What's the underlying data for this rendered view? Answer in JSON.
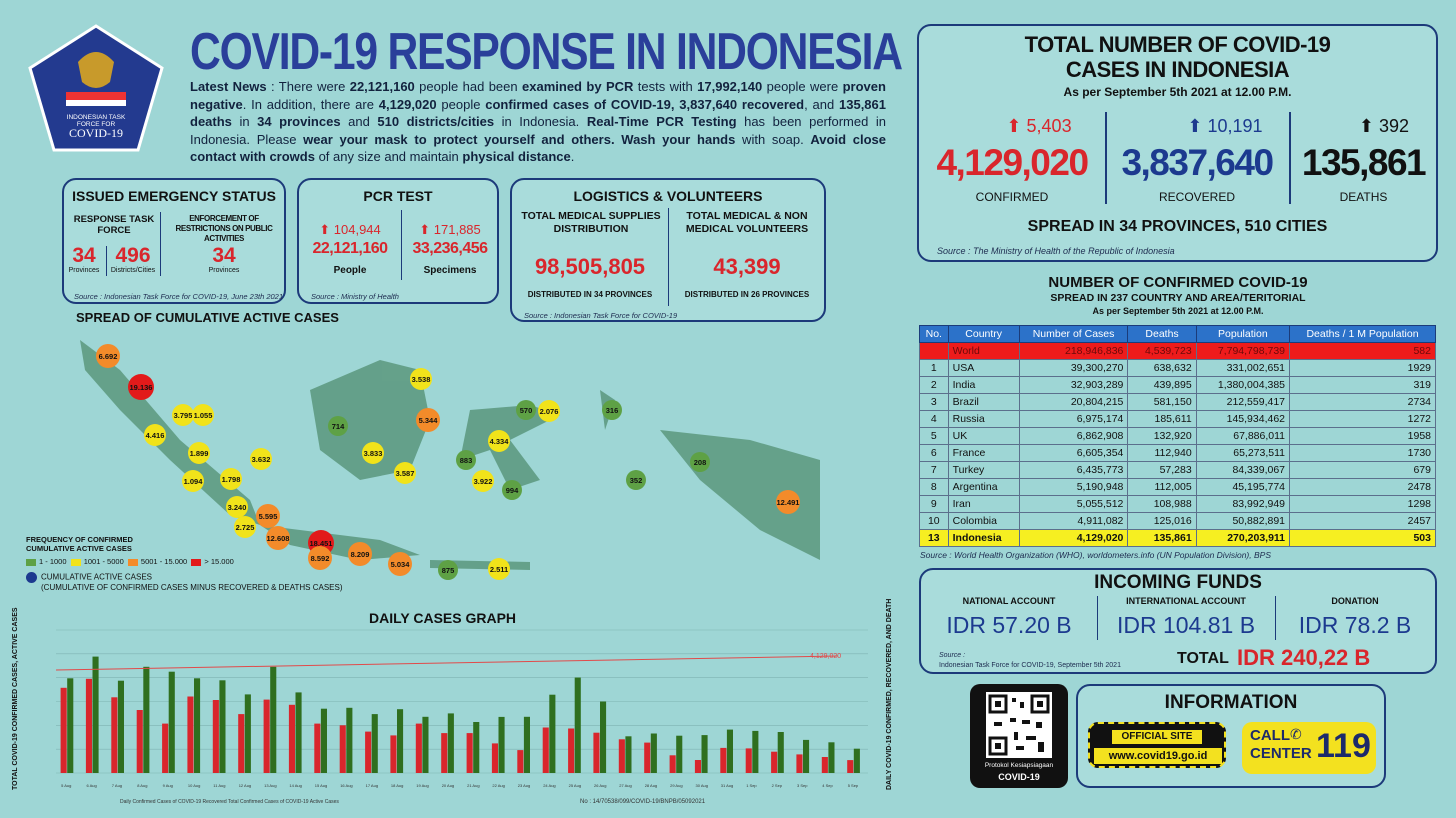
{
  "header": {
    "title": "COVID-19 RESPONSE IN INDONESIA",
    "logo_lines": [
      "INDONESIAN TASK",
      "FORCE FOR",
      "COVID-19"
    ],
    "news": {
      "t1": "Latest News",
      "t2": " : There were ",
      "t3": "22,121,160",
      "t4": " people had been ",
      "t5": "examined by PCR",
      "t6": " tests with ",
      "t7": "17,992,140",
      "t8": " people were ",
      "t9": "proven negative",
      "t10": ". In addition, there are ",
      "t11": "4,129,020",
      "t12": " people ",
      "t13": "confirmed cases of COVID-19, 3,837,640 recovered",
      "t14": ", and ",
      "t15": "135,861 deaths",
      "t16": " in ",
      "t17": "34 provinces",
      "t18": " and ",
      "t19": "510 districts/cities",
      "t20": " in Indonesia. ",
      "t21": "Real-Time PCR Testing",
      "t22": " has been performed in Indonesia. Please ",
      "t23": "wear your mask to protect yourself and others. Wash your hands",
      "t24": " with soap. ",
      "t25": "Avoid close contact with crowds",
      "t26": " of any size and maintain ",
      "t27": "physical distance",
      "t28": "."
    }
  },
  "emergency": {
    "title": "ISSUED EMERGENCY STATUS",
    "col1_title": "RESPONSE TASK FORCE",
    "col2_title": "ENFORCEMENT OF RESTRICTIONS ON PUBLIC ACTIVITIES",
    "n1": "34",
    "l1": "Provinces",
    "n2": "496",
    "l2": "Districts/Cities",
    "n3": "34",
    "l3": "Provinces",
    "source": "Source : Indonesian Task Force for COVID-19, June 23th 2021"
  },
  "pcr": {
    "title": "PCR TEST",
    "inc1": "104,944",
    "val1": "22,121,160",
    "lab1": "People",
    "inc2": "171,885",
    "val2": "33,236,456",
    "lab2": "Specimens",
    "source": "Source : Ministry of Health"
  },
  "logistics": {
    "title": "LOGISTICS & VOLUNTEERS",
    "c1_title": "TOTAL MEDICAL SUPPLIES DISTRIBUTION",
    "c1_val": "98,505,805",
    "c1_foot": "DISTRIBUTED IN 34 PROVINCES",
    "c2_title": "TOTAL MEDICAL & NON MEDICAL VOLUNTEERS",
    "c2_val": "43,399",
    "c2_foot": "DISTRIBUTED IN 26 PROVINCES",
    "source": "Source : Indonesian Task Force for COVID-19"
  },
  "totals": {
    "title1": "TOTAL NUMBER OF COVID-19",
    "title2": "CASES IN INDONESIA",
    "asof": "As per September 5th 2021 at 12.00 P.M.",
    "confirmed_inc": "5,403",
    "confirmed": "4,129,020",
    "confirmed_label": "CONFIRMED",
    "recovered_inc": "10,191",
    "recovered": "3,837,640",
    "recovered_label": "RECOVERED",
    "deaths_inc": "392",
    "deaths": "135,861",
    "deaths_label": "DEATHS",
    "spread": "SPREAD IN 34 PROVINCES, 510 CITIES",
    "source": "Source : The Ministry of Health of the Republic of Indonesia"
  },
  "world": {
    "title": "NUMBER OF CONFIRMED COVID-19",
    "subtitle": "SPREAD IN 237 COUNTRY AND AREA/TERITORIAL",
    "asof": "As per September 5th 2021 at 12.00 P.M.",
    "columns": [
      "No.",
      "Country",
      "Number of Cases",
      "Deaths",
      "Population",
      "Deaths / 1 M Population"
    ],
    "rows": [
      [
        "",
        "World",
        "218,946,836",
        "4,539,723",
        "7,794,798,739",
        "582"
      ],
      [
        "1",
        "USA",
        "39,300,270",
        "638,632",
        "331,002,651",
        "1929"
      ],
      [
        "2",
        "India",
        "32,903,289",
        "439,895",
        "1,380,004,385",
        "319"
      ],
      [
        "3",
        "Brazil",
        "20,804,215",
        "581,150",
        "212,559,417",
        "2734"
      ],
      [
        "4",
        "Russia",
        "6,975,174",
        "185,611",
        "145,934,462",
        "1272"
      ],
      [
        "5",
        "UK",
        "6,862,908",
        "132,920",
        "67,886,011",
        "1958"
      ],
      [
        "6",
        "France",
        "6,605,354",
        "112,940",
        "65,273,511",
        "1730"
      ],
      [
        "7",
        "Turkey",
        "6,435,773",
        "57,283",
        "84,339,067",
        "679"
      ],
      [
        "8",
        "Argentina",
        "5,190,948",
        "112,005",
        "45,195,774",
        "2478"
      ],
      [
        "9",
        "Iran",
        "5,055,512",
        "108,988",
        "83,992,949",
        "1298"
      ],
      [
        "10",
        "Colombia",
        "4,911,082",
        "125,016",
        "50,882,891",
        "2457"
      ],
      [
        "13",
        "Indonesia",
        "4,129,020",
        "135,861",
        "270,203,911",
        "503"
      ]
    ],
    "source": "Source : World Health Organization (WHO), worldometers.info (UN Population Division), BPS"
  },
  "funds": {
    "title": "INCOMING FUNDS",
    "nat_label": "NATIONAL ACCOUNT",
    "nat": "IDR 57.20 B",
    "int_label": "INTERNATIONAL ACCOUNT",
    "int": "IDR 104.81 B",
    "don_label": "DONATION",
    "don": "IDR 78.2 B",
    "source1": "Source :",
    "source2": "Indonesian Task Force for COVID-19, September 5th 2021",
    "total_label": "TOTAL",
    "total": "IDR 240,22 B"
  },
  "info": {
    "qr_l1": "Protokol Kesiapsiagaan",
    "qr_l2": "COVID-19",
    "title": "INFORMATION",
    "site_label": "OFFICIAL SITE",
    "site_url": "www.covid19.go.id",
    "call1": "CALL",
    "call2": "CENTER",
    "call_num": "119"
  },
  "map": {
    "title": "SPREAD OF CUMULATIVE ACTIVE CASES",
    "legend_title1": "FREQUENCY OF CONFIRMED",
    "legend_title2": "CUMULATIVE ACTIVE CASES",
    "legend": [
      "1 - 1000",
      "1001 - 5000",
      "5001 - 15.000",
      "> 15.000"
    ],
    "legend_colors": [
      "#5ea145",
      "#f1e31a",
      "#f38b2a",
      "#e21a1a"
    ],
    "cum_label": "CUMULATIVE ACTIVE CASES",
    "cum_note": "(CUMULATIVE OF CONFIRMED CASES MINUS RECOVERED & DEATHS CASES)",
    "dots": [
      {
        "v": "6.692",
        "c": "o"
      },
      {
        "v": "19.136",
        "c": "r"
      },
      {
        "v": "3.795",
        "c": "y"
      },
      {
        "v": "1.055",
        "c": "y"
      },
      {
        "v": "4.416",
        "c": "y"
      },
      {
        "v": "1.899",
        "c": "y"
      },
      {
        "v": "3.632",
        "c": "y"
      },
      {
        "v": "1.094",
        "c": "y"
      },
      {
        "v": "1.798",
        "c": "y"
      },
      {
        "v": "3.240",
        "c": "y"
      },
      {
        "v": "5.595",
        "c": "o"
      },
      {
        "v": "2.725",
        "c": "y"
      },
      {
        "v": "12.608",
        "c": "o"
      },
      {
        "v": "18.451",
        "c": "r"
      },
      {
        "v": "8.592",
        "c": "o"
      },
      {
        "v": "8.209",
        "c": "o"
      },
      {
        "v": "5.034",
        "c": "o"
      },
      {
        "v": "875",
        "c": "g"
      },
      {
        "v": "2.511",
        "c": "y"
      },
      {
        "v": "714",
        "c": "g"
      },
      {
        "v": "3.833",
        "c": "y"
      },
      {
        "v": "3.587",
        "c": "y"
      },
      {
        "v": "3.538",
        "c": "y"
      },
      {
        "v": "5.344",
        "c": "o"
      },
      {
        "v": "570",
        "c": "g"
      },
      {
        "v": "2.076",
        "c": "y"
      },
      {
        "v": "4.334",
        "c": "y"
      },
      {
        "v": "883",
        "c": "g"
      },
      {
        "v": "3.922",
        "c": "y"
      },
      {
        "v": "994",
        "c": "g"
      },
      {
        "v": "316",
        "c": "g"
      },
      {
        "v": "352",
        "c": "g"
      },
      {
        "v": "208",
        "c": "g"
      },
      {
        "v": "12.491",
        "c": "o"
      }
    ]
  },
  "graph": {
    "title": "DAILY CASES GRAPH",
    "ylabel_left": "TOTAL COVID-19 CONFIRMED CASES, ACTIVE CASES",
    "ylabel_right": "DAILY COVID-19 CONFIRMED, RECOVERED, AND DEATH",
    "annotation": "4,129,020",
    "legend": "Daily Confirmed Cases of COVID-19   Recovered   Total Confirmed Cases of COVID-19   Active Cases",
    "footer": "No : 14/70538/099/COVID-19/BNPB/05092021"
  },
  "colors": {
    "navy": "#1c3a8f",
    "red": "#d9262c",
    "bg": "#9ed6d5",
    "bar_red": "#d9262c",
    "bar_green": "#2f6f1f"
  },
  "chart_data": {
    "type": "bar",
    "categories": [
      "5 Aug",
      "6 Aug",
      "7 Aug",
      "8 Aug",
      "9 Aug",
      "10 Aug",
      "11 Aug",
      "12 Aug",
      "13 Aug",
      "14 Aug",
      "15 Aug",
      "16 Aug",
      "17 Aug",
      "18 Aug",
      "19 Aug",
      "20 Aug",
      "21 Aug",
      "22 Aug",
      "23 Aug",
      "24 Aug",
      "25 Aug",
      "26 Aug",
      "27 Aug",
      "28 Aug",
      "29 Aug",
      "30 Aug",
      "31 Aug",
      "1 Sep",
      "2 Sep",
      "3 Sep",
      "4 Sep",
      "5 Sep"
    ],
    "series": [
      {
        "name": "Daily Confirmed Cases of COVID-19",
        "values": [
          35764,
          39532,
          31753,
          26415,
          20709,
          32081,
          30625,
          24709,
          30788,
          28598,
          20741,
          20004,
          17384,
          15768,
          20741,
          16744,
          16744,
          12408,
          9604,
          19106,
          18671,
          16899,
          14138,
          12748,
          7427,
          5436,
          10534,
          10337,
          8955,
          7797,
          6726,
          5403
        ]
      },
      {
        "name": "Recovered",
        "values": [
          39726,
          48832,
          38714,
          44558,
          42493,
          39719,
          38901,
          32997,
          44563,
          33820,
          26987,
          27353,
          24734,
          26778,
          23577,
          25016,
          21417,
          23541,
          23587,
          32853,
          40083,
          30008,
          15399,
          16554,
          15660,
          15889,
          18197,
          17681,
          17200,
          13870,
          12864,
          10191
        ]
      }
    ],
    "ylim": [
      0,
      60000
    ]
  }
}
